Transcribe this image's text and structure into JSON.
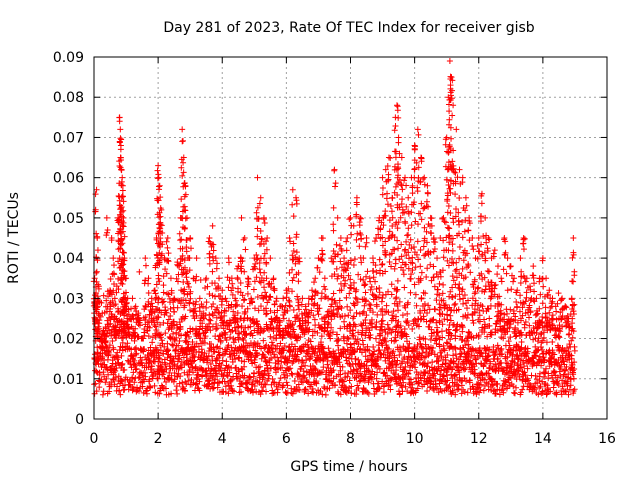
{
  "chart_data": {
    "type": "scatter",
    "title": "Day 281 of 2023, Rate Of TEC Index for receiver gisb",
    "xlabel": "GPS time / hours",
    "ylabel": "ROTI / TECUs",
    "xlim": [
      0,
      16
    ],
    "ylim": [
      0,
      0.09
    ],
    "x_ticks": [
      "0",
      "2",
      "4",
      "6",
      "8",
      "10",
      "12",
      "14",
      "16"
    ],
    "y_ticks": [
      "0",
      "0.01",
      "0.02",
      "0.03",
      "0.04",
      "0.05",
      "0.06",
      "0.07",
      "0.08",
      "0.09"
    ],
    "grid": true,
    "marker": "plus",
    "color": "#ff0000",
    "x_data_range": [
      0,
      15
    ],
    "series": [
      {
        "x": [
          0.02,
          0.05,
          0.08,
          0.1,
          0.12,
          0.15,
          0.2,
          0.25,
          0.3,
          0.35,
          0.4,
          0.5,
          0.55,
          0.6,
          0.65,
          0.7,
          0.75,
          0.8,
          0.82,
          0.84,
          0.86,
          0.88,
          0.9,
          0.92,
          0.95,
          1.0,
          1.05,
          1.1,
          1.2,
          1.3,
          1.4,
          1.5,
          1.6,
          1.7,
          1.8,
          1.9,
          1.95,
          2.0,
          2.02,
          2.05,
          2.1,
          2.2,
          2.3,
          2.4,
          2.5,
          2.6,
          2.7,
          2.75,
          2.8,
          2.85,
          2.9,
          3.0,
          3.1,
          3.2,
          3.3,
          3.4,
          3.5,
          3.6,
          3.7,
          3.8,
          3.9,
          4.0,
          4.1,
          4.2,
          4.3,
          4.4,
          4.5,
          4.6,
          4.7,
          4.8,
          4.9,
          5.0,
          5.1,
          5.2,
          5.3,
          5.4,
          5.5,
          5.6,
          5.7,
          5.8,
          5.9,
          6.0,
          6.1,
          6.2,
          6.3,
          6.4,
          6.5,
          6.6,
          6.7,
          6.8,
          6.9,
          7.0,
          7.1,
          7.2,
          7.3,
          7.4,
          7.5,
          7.6,
          7.7,
          7.8,
          7.9,
          8.0,
          8.1,
          8.2,
          8.3,
          8.4,
          8.5,
          8.6,
          8.7,
          8.8,
          8.9,
          9.0,
          9.1,
          9.2,
          9.3,
          9.4,
          9.45,
          9.5,
          9.6,
          9.7,
          9.8,
          9.9,
          10.0,
          10.1,
          10.2,
          10.3,
          10.4,
          10.5,
          10.6,
          10.7,
          10.8,
          10.9,
          11.0,
          11.05,
          11.1,
          11.15,
          11.2,
          11.3,
          11.4,
          11.5,
          11.6,
          11.7,
          11.8,
          11.9,
          12.0,
          12.1,
          12.2,
          12.3,
          12.4,
          12.5,
          12.6,
          12.7,
          12.8,
          12.9,
          13.0,
          13.1,
          13.2,
          13.3,
          13.4,
          13.5,
          13.6,
          13.7,
          13.8,
          13.9,
          14.0,
          14.1,
          14.2,
          14.3,
          14.4,
          14.5,
          14.6,
          14.7,
          14.8,
          14.9,
          14.95
        ],
        "y": [
          0.035,
          0.03,
          0.057,
          0.045,
          0.028,
          0.033,
          0.02,
          0.015,
          0.022,
          0.018,
          0.05,
          0.032,
          0.045,
          0.04,
          0.03,
          0.025,
          0.05,
          0.075,
          0.072,
          0.068,
          0.062,
          0.06,
          0.058,
          0.05,
          0.04,
          0.035,
          0.03,
          0.025,
          0.03,
          0.028,
          0.025,
          0.02,
          0.04,
          0.035,
          0.03,
          0.032,
          0.045,
          0.063,
          0.06,
          0.058,
          0.052,
          0.04,
          0.045,
          0.035,
          0.03,
          0.039,
          0.05,
          0.072,
          0.065,
          0.058,
          0.05,
          0.045,
          0.035,
          0.04,
          0.03,
          0.028,
          0.035,
          0.045,
          0.048,
          0.04,
          0.035,
          0.032,
          0.03,
          0.04,
          0.035,
          0.03,
          0.038,
          0.05,
          0.045,
          0.035,
          0.03,
          0.04,
          0.06,
          0.055,
          0.05,
          0.045,
          0.04,
          0.035,
          0.03,
          0.028,
          0.03,
          0.032,
          0.045,
          0.057,
          0.055,
          0.04,
          0.03,
          0.028,
          0.03,
          0.032,
          0.035,
          0.04,
          0.045,
          0.035,
          0.03,
          0.04,
          0.062,
          0.05,
          0.045,
          0.04,
          0.045,
          0.05,
          0.048,
          0.055,
          0.05,
          0.04,
          0.045,
          0.035,
          0.04,
          0.045,
          0.05,
          0.06,
          0.062,
          0.065,
          0.055,
          0.075,
          0.078,
          0.07,
          0.065,
          0.06,
          0.055,
          0.06,
          0.068,
          0.072,
          0.065,
          0.06,
          0.058,
          0.05,
          0.045,
          0.04,
          0.045,
          0.05,
          0.07,
          0.08,
          0.089,
          0.085,
          0.078,
          0.072,
          0.062,
          0.06,
          0.055,
          0.05,
          0.045,
          0.04,
          0.045,
          0.056,
          0.05,
          0.045,
          0.04,
          0.042,
          0.038,
          0.035,
          0.045,
          0.04,
          0.038,
          0.035,
          0.032,
          0.04,
          0.045,
          0.035,
          0.033,
          0.038,
          0.03,
          0.035,
          0.04,
          0.035,
          0.032,
          0.03,
          0.028,
          0.025,
          0.03,
          0.028,
          0.025,
          0.03,
          0.045
        ]
      }
    ]
  }
}
